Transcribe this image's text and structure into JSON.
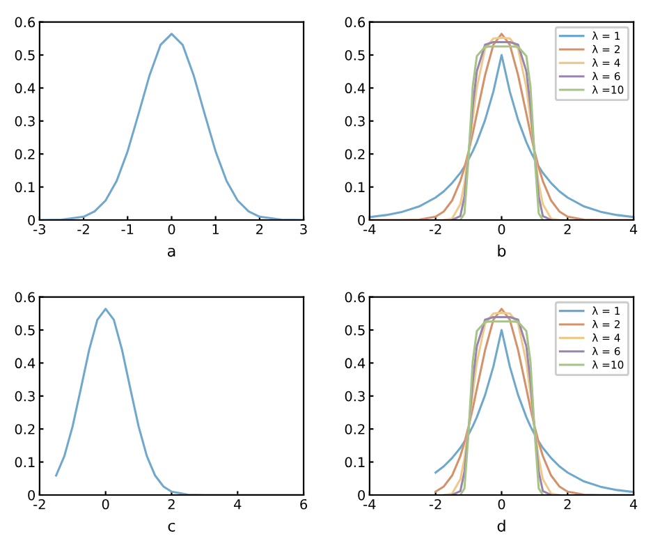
{
  "chart_data": [
    {
      "type": "line",
      "xlabel": "a",
      "xlim": [
        -3,
        3
      ],
      "ylim": [
        0,
        0.6
      ],
      "xticks": [
        -3,
        -2,
        -1,
        0,
        1,
        2,
        3
      ],
      "yticks": [
        0,
        0.1,
        0.2,
        0.3,
        0.4,
        0.5,
        0.6
      ],
      "grid": false,
      "legend": false,
      "series": [
        {
          "color": "#6fa8cc",
          "x": [
            -3,
            -2.5,
            -2,
            -1.75,
            -1.5,
            -1.25,
            -1,
            -0.75,
            -0.5,
            -0.25,
            0,
            0.25,
            0.5,
            0.75,
            1,
            1.25,
            1.5,
            1.75,
            2,
            2.5,
            3
          ],
          "values": [
            0,
            0.001,
            0.01,
            0.026,
            0.059,
            0.118,
            0.208,
            0.322,
            0.439,
            0.531,
            0.564,
            0.531,
            0.439,
            0.322,
            0.208,
            0.118,
            0.059,
            0.026,
            0.01,
            0.001,
            0
          ]
        }
      ]
    },
    {
      "type": "line",
      "xlabel": "b",
      "xlim": [
        -4,
        4
      ],
      "ylim": [
        0,
        0.6
      ],
      "xticks": [
        -4,
        -2,
        0,
        2,
        4
      ],
      "yticks": [
        0,
        0.1,
        0.2,
        0.3,
        0.4,
        0.5,
        0.6
      ],
      "grid": false,
      "legend": "top right",
      "x": [
        -4,
        -3.5,
        -3,
        -2.5,
        -2,
        -1.75,
        -1.5,
        -1.25,
        -1.125,
        -1,
        -0.875,
        -0.75,
        -0.5,
        -0.25,
        0,
        0.25,
        0.5,
        0.75,
        0.875,
        1,
        1.125,
        1.25,
        1.5,
        1.75,
        2,
        2.5,
        3,
        3.5,
        4
      ],
      "series": [
        {
          "name": "λ = 1",
          "color": "#6fa8cc",
          "values": [
            0.009,
            0.015,
            0.025,
            0.041,
            0.068,
            0.087,
            0.112,
            0.143,
            0.162,
            0.184,
            0.208,
            0.236,
            0.303,
            0.389,
            0.5,
            0.389,
            0.303,
            0.236,
            0.208,
            0.184,
            0.162,
            0.143,
            0.112,
            0.087,
            0.068,
            0.041,
            0.025,
            0.015,
            0.009
          ]
        },
        {
          "name": "λ = 2",
          "color": "#d4926a",
          "values": [
            0,
            0,
            0,
            0.001,
            0.01,
            0.026,
            0.059,
            0.118,
            0.159,
            0.208,
            0.262,
            0.322,
            0.439,
            0.531,
            0.564,
            0.531,
            0.439,
            0.322,
            0.262,
            0.208,
            0.159,
            0.118,
            0.059,
            0.026,
            0.01,
            0.001,
            0,
            0,
            0
          ]
        },
        {
          "name": "λ = 4",
          "color": "#efc98a",
          "x": [
            -1.75,
            -1.5,
            -1.25,
            -1.125,
            -1,
            -0.875,
            -0.75,
            -0.5,
            -0.25,
            0,
            0.25,
            0.5,
            0.75,
            0.875,
            1,
            1.125,
            1.25,
            1.5,
            1.75
          ],
          "values": [
            0,
            0.004,
            0.048,
            0.111,
            0.203,
            0.307,
            0.402,
            0.519,
            0.55,
            0.552,
            0.55,
            0.519,
            0.402,
            0.307,
            0.203,
            0.111,
            0.048,
            0.004,
            0
          ]
        },
        {
          "name": "λ = 6",
          "color": "#9a86ac",
          "x": [
            -1.5,
            -1.25,
            -1.125,
            -1,
            -0.875,
            -0.75,
            -0.5,
            -0.25,
            0,
            0.25,
            0.5,
            0.75,
            0.875,
            1,
            1.125,
            1.25,
            1.5
          ],
          "values": [
            0,
            0.012,
            0.071,
            0.198,
            0.344,
            0.451,
            0.531,
            0.539,
            0.539,
            0.539,
            0.531,
            0.451,
            0.344,
            0.198,
            0.071,
            0.012,
            0
          ]
        },
        {
          "name": "λ =10",
          "color": "#a6c487",
          "x": [
            -1.25,
            -1.125,
            -1,
            -0.875,
            -0.75,
            -0.5,
            -0.25,
            0,
            0.25,
            0.5,
            0.75,
            0.875,
            1,
            1.125,
            1.25
          ],
          "values": [
            0,
            0.02,
            0.193,
            0.404,
            0.497,
            0.525,
            0.526,
            0.526,
            0.526,
            0.525,
            0.497,
            0.404,
            0.193,
            0.02,
            0
          ]
        }
      ]
    },
    {
      "type": "line",
      "xlabel": "c",
      "xlim": [
        -2,
        6
      ],
      "ylim": [
        0,
        0.6
      ],
      "xticks": [
        -2,
        0,
        2,
        4,
        6
      ],
      "yticks": [
        0,
        0.1,
        0.2,
        0.3,
        0.4,
        0.5,
        0.6
      ],
      "grid": false,
      "legend": false,
      "series": [
        {
          "color": "#6fa8cc",
          "x": [
            -1.5,
            -1.25,
            -1,
            -0.75,
            -0.5,
            -0.25,
            0,
            0.25,
            0.5,
            0.75,
            1,
            1.25,
            1.5,
            1.75,
            2,
            2.5,
            3,
            4,
            5,
            6
          ],
          "values": [
            0.059,
            0.118,
            0.208,
            0.322,
            0.439,
            0.531,
            0.564,
            0.531,
            0.439,
            0.322,
            0.208,
            0.118,
            0.059,
            0.026,
            0.01,
            0.001,
            0,
            0,
            0,
            0
          ]
        }
      ]
    },
    {
      "type": "line",
      "xlabel": "d",
      "xlim": [
        -4,
        4
      ],
      "ylim": [
        0,
        0.6
      ],
      "xticks": [
        -4,
        -2,
        0,
        2,
        4
      ],
      "yticks": [
        0,
        0.1,
        0.2,
        0.3,
        0.4,
        0.5,
        0.6
      ],
      "grid": false,
      "legend": "top right",
      "x": [
        -2,
        -1.75,
        -1.5,
        -1.25,
        -1.125,
        -1,
        -0.875,
        -0.75,
        -0.5,
        -0.25,
        0,
        0.25,
        0.5,
        0.75,
        0.875,
        1,
        1.125,
        1.25,
        1.5,
        1.75,
        2,
        2.5,
        3,
        3.5,
        4
      ],
      "series": [
        {
          "name": "λ = 1",
          "color": "#6fa8cc",
          "values": [
            0.068,
            0.087,
            0.112,
            0.143,
            0.162,
            0.184,
            0.208,
            0.236,
            0.303,
            0.389,
            0.5,
            0.389,
            0.303,
            0.236,
            0.208,
            0.184,
            0.162,
            0.143,
            0.112,
            0.087,
            0.068,
            0.041,
            0.025,
            0.015,
            0.009
          ]
        },
        {
          "name": "λ = 2",
          "color": "#d4926a",
          "values": [
            0.01,
            0.026,
            0.059,
            0.118,
            0.159,
            0.208,
            0.262,
            0.322,
            0.439,
            0.531,
            0.564,
            0.531,
            0.439,
            0.322,
            0.262,
            0.208,
            0.159,
            0.118,
            0.059,
            0.026,
            0.01,
            0.001,
            0,
            0,
            0
          ]
        },
        {
          "name": "λ = 4",
          "color": "#efc98a",
          "x": [
            -1.75,
            -1.5,
            -1.25,
            -1.125,
            -1,
            -0.875,
            -0.75,
            -0.5,
            -0.25,
            0,
            0.25,
            0.5,
            0.75,
            0.875,
            1,
            1.125,
            1.25,
            1.5,
            1.75
          ],
          "values": [
            0,
            0.004,
            0.048,
            0.111,
            0.203,
            0.307,
            0.402,
            0.519,
            0.55,
            0.552,
            0.55,
            0.519,
            0.402,
            0.307,
            0.203,
            0.111,
            0.048,
            0.004,
            0
          ]
        },
        {
          "name": "λ = 6",
          "color": "#9a86ac",
          "x": [
            -1.5,
            -1.25,
            -1.125,
            -1,
            -0.875,
            -0.75,
            -0.5,
            -0.25,
            0,
            0.25,
            0.5,
            0.75,
            0.875,
            1,
            1.125,
            1.25,
            1.5
          ],
          "values": [
            0,
            0.012,
            0.071,
            0.198,
            0.344,
            0.451,
            0.531,
            0.539,
            0.539,
            0.539,
            0.531,
            0.451,
            0.344,
            0.198,
            0.071,
            0.012,
            0
          ]
        },
        {
          "name": "λ =10",
          "color": "#a6c487",
          "x": [
            -1.25,
            -1.125,
            -1,
            -0.875,
            -0.75,
            -0.5,
            -0.25,
            0,
            0.25,
            0.5,
            0.75,
            0.875,
            1,
            1.125,
            1.25
          ],
          "values": [
            0,
            0.02,
            0.193,
            0.404,
            0.497,
            0.525,
            0.526,
            0.526,
            0.526,
            0.525,
            0.497,
            0.404,
            0.193,
            0.02,
            0
          ]
        }
      ]
    }
  ]
}
